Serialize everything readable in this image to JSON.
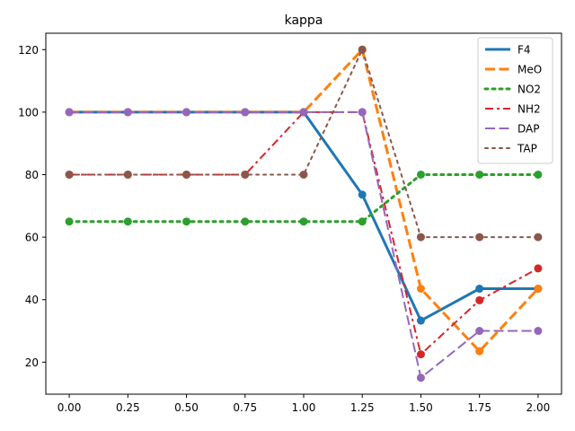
{
  "chart_data": {
    "type": "line",
    "title": "kappa",
    "xlabel": "",
    "ylabel": "",
    "x": [
      0.0,
      0.25,
      0.5,
      0.75,
      1.0,
      1.25,
      1.5,
      1.75,
      2.0
    ],
    "xlim": [
      -0.1,
      2.1
    ],
    "ylim": [
      9.75,
      125.25
    ],
    "xticks": [
      0.0,
      0.25,
      0.5,
      0.75,
      1.0,
      1.25,
      1.5,
      1.75,
      2.0
    ],
    "xtick_labels": [
      "0.00",
      "0.25",
      "0.50",
      "0.75",
      "1.00",
      "1.25",
      "1.50",
      "1.75",
      "2.00"
    ],
    "yticks": [
      20,
      40,
      60,
      80,
      100,
      120
    ],
    "ytick_labels": [
      "20",
      "40",
      "60",
      "80",
      "100",
      "120"
    ],
    "grid": false,
    "legend_position": "top-right",
    "series": [
      {
        "name": "F4",
        "color": "#1f77b4",
        "style": "solid",
        "width": 3,
        "values": [
          100,
          100,
          100,
          100,
          100,
          73.6,
          33.3,
          43.5,
          43.5
        ]
      },
      {
        "name": "MeO",
        "color": "#ff7f0e",
        "style": "dashed",
        "width": 3,
        "values": [
          100,
          100,
          100,
          100,
          100,
          120,
          43.5,
          23.5,
          43.5
        ]
      },
      {
        "name": "NO2",
        "color": "#2ca02c",
        "style": "dotted",
        "width": 3,
        "values": [
          65,
          65,
          65,
          65,
          65,
          65,
          80,
          80,
          80
        ]
      },
      {
        "name": "NH2",
        "color": "#d62728",
        "style": "dashdot",
        "width": 2,
        "values": [
          80,
          80,
          80,
          80,
          100,
          100,
          22.5,
          39.8,
          50
        ]
      },
      {
        "name": "DAP",
        "color": "#9467bd",
        "style": "dashed",
        "width": 2,
        "values": [
          100,
          100,
          100,
          100,
          100,
          100,
          15,
          30,
          30
        ]
      },
      {
        "name": "TAP",
        "color": "#8c564b",
        "style": "dotted",
        "width": 2,
        "values": [
          80,
          80,
          80,
          80,
          80,
          120,
          60,
          60,
          60
        ]
      }
    ]
  }
}
